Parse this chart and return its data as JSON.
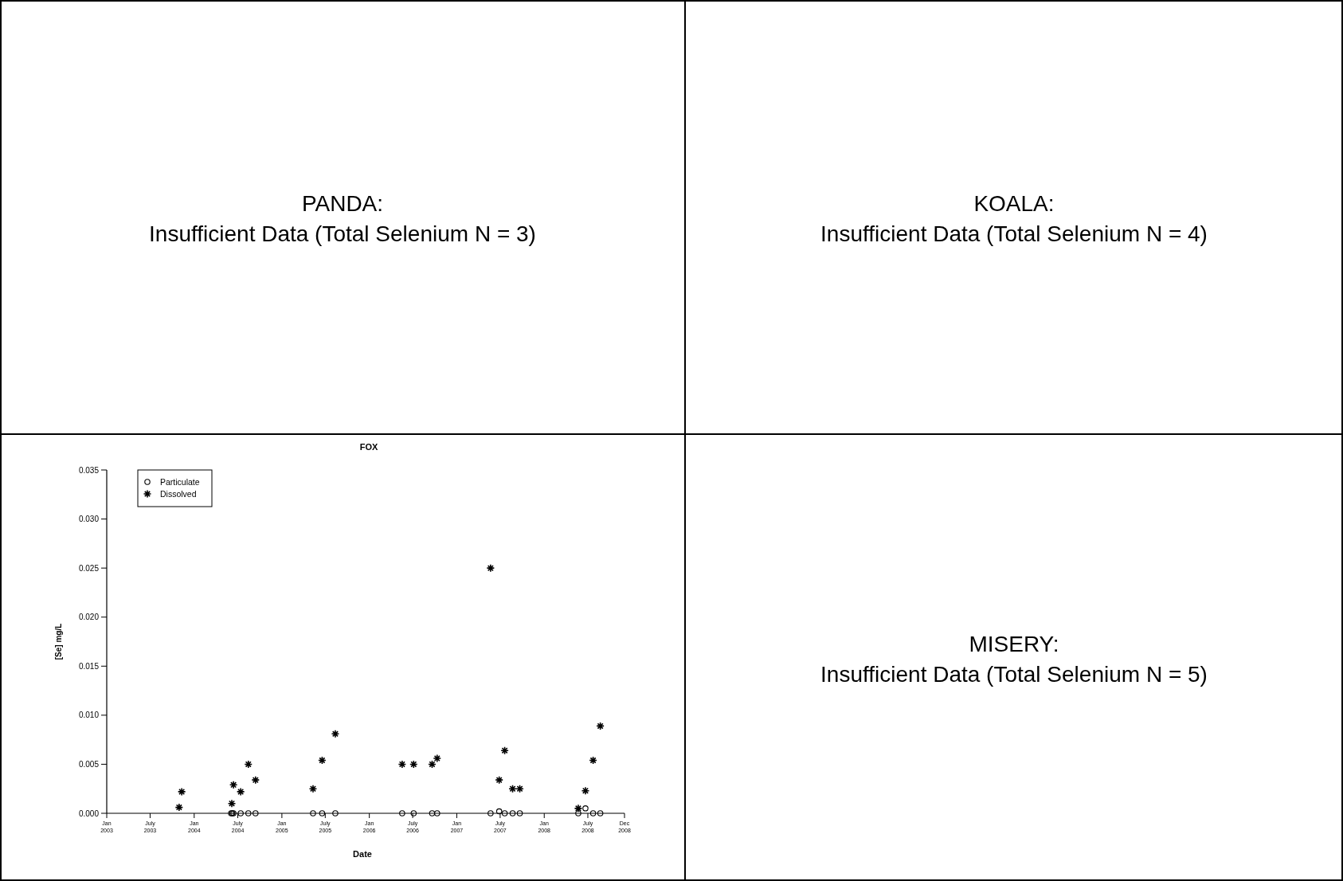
{
  "chart_data": [
    {
      "type": "other",
      "title": "PANDA:",
      "subtitle": "Insufficient Data (Total Selenium N = 3)"
    },
    {
      "type": "other",
      "title": "KOALA:",
      "subtitle": "Insufficient Data (Total Selenium N = 4)"
    },
    {
      "type": "scatter",
      "title": "FOX",
      "xlabel": "Date",
      "ylabel": "[Se] mg/L",
      "legend": "top left",
      "grid": false,
      "xlim": [
        "2003-01-01",
        "2008-12-01"
      ],
      "xticks": [
        {
          "value": "2003-01-01",
          "label": "Jan 2003"
        },
        {
          "value": "2003-07-01",
          "label": "July 2003"
        },
        {
          "value": "2004-01-01",
          "label": "Jan 2004"
        },
        {
          "value": "2004-07-01",
          "label": "July 2004"
        },
        {
          "value": "2005-01-01",
          "label": "Jan 2005"
        },
        {
          "value": "2005-07-01",
          "label": "July 2005"
        },
        {
          "value": "2006-01-01",
          "label": "Jan 2006"
        },
        {
          "value": "2006-07-01",
          "label": "July 2006"
        },
        {
          "value": "2007-01-01",
          "label": "Jan 2007"
        },
        {
          "value": "2007-07-01",
          "label": "July 2007"
        },
        {
          "value": "2008-01-01",
          "label": "Jan 2008"
        },
        {
          "value": "2008-07-01",
          "label": "July 2008"
        },
        {
          "value": "2008-12-01",
          "label": "Dec 2008"
        }
      ],
      "ylim": [
        0,
        0.035
      ],
      "yticks": [
        {
          "value": 0,
          "label": "0.000"
        },
        {
          "value": 0.005,
          "label": "0.005"
        },
        {
          "value": 0.01,
          "label": "0.010"
        },
        {
          "value": 0.015,
          "label": "0.015"
        },
        {
          "value": 0.02,
          "label": "0.020"
        },
        {
          "value": 0.025,
          "label": "0.025"
        },
        {
          "value": 0.03,
          "label": "0.030"
        },
        {
          "value": 0.035,
          "label": "0.035"
        }
      ],
      "series": [
        {
          "name": "Particulate",
          "color": "#000000",
          "marker": "circle",
          "x": [
            "2004-06-03",
            "2004-06-08",
            "2004-06-13",
            "2004-07-13",
            "2004-08-14",
            "2004-09-13",
            "2005-05-11",
            "2005-06-18",
            "2005-08-12",
            "2006-05-18",
            "2006-07-05",
            "2006-09-20",
            "2006-10-11",
            "2007-05-22",
            "2007-06-27",
            "2007-07-20",
            "2007-08-22",
            "2007-09-21",
            "2008-05-22",
            "2008-06-21",
            "2008-07-23",
            "2008-08-22"
          ],
          "values": [
            0,
            0,
            0,
            0,
            0,
            0,
            0,
            0,
            0,
            0,
            0,
            0,
            0,
            0,
            0.0002,
            0,
            0,
            0,
            0,
            0.0005,
            0,
            0
          ]
        },
        {
          "name": "Dissolved",
          "color": "#000000",
          "marker": "cross",
          "x": [
            "2003-10-30",
            "2003-11-10",
            "2004-06-06",
            "2004-06-13",
            "2004-07-13",
            "2004-08-14",
            "2004-09-13",
            "2005-05-11",
            "2005-06-18",
            "2005-08-12",
            "2006-05-18",
            "2006-07-05",
            "2006-09-20",
            "2006-10-11",
            "2007-05-22",
            "2007-06-27",
            "2007-07-20",
            "2007-08-22",
            "2007-09-21",
            "2008-05-22",
            "2008-06-21",
            "2008-07-23",
            "2008-08-22"
          ],
          "values": [
            0.0006,
            0.0022,
            0.001,
            0.0029,
            0.0022,
            0.005,
            0.0034,
            0.0025,
            0.0054,
            0.0081,
            0.005,
            0.005,
            0.005,
            0.0056,
            0.025,
            0.0034,
            0.0064,
            0.0025,
            0.0025,
            0.0005,
            0.0023,
            0.0054,
            0.0089
          ]
        }
      ]
    },
    {
      "type": "other",
      "title": "MISERY:",
      "subtitle": "Insufficient Data (Total Selenium N = 5)"
    }
  ]
}
